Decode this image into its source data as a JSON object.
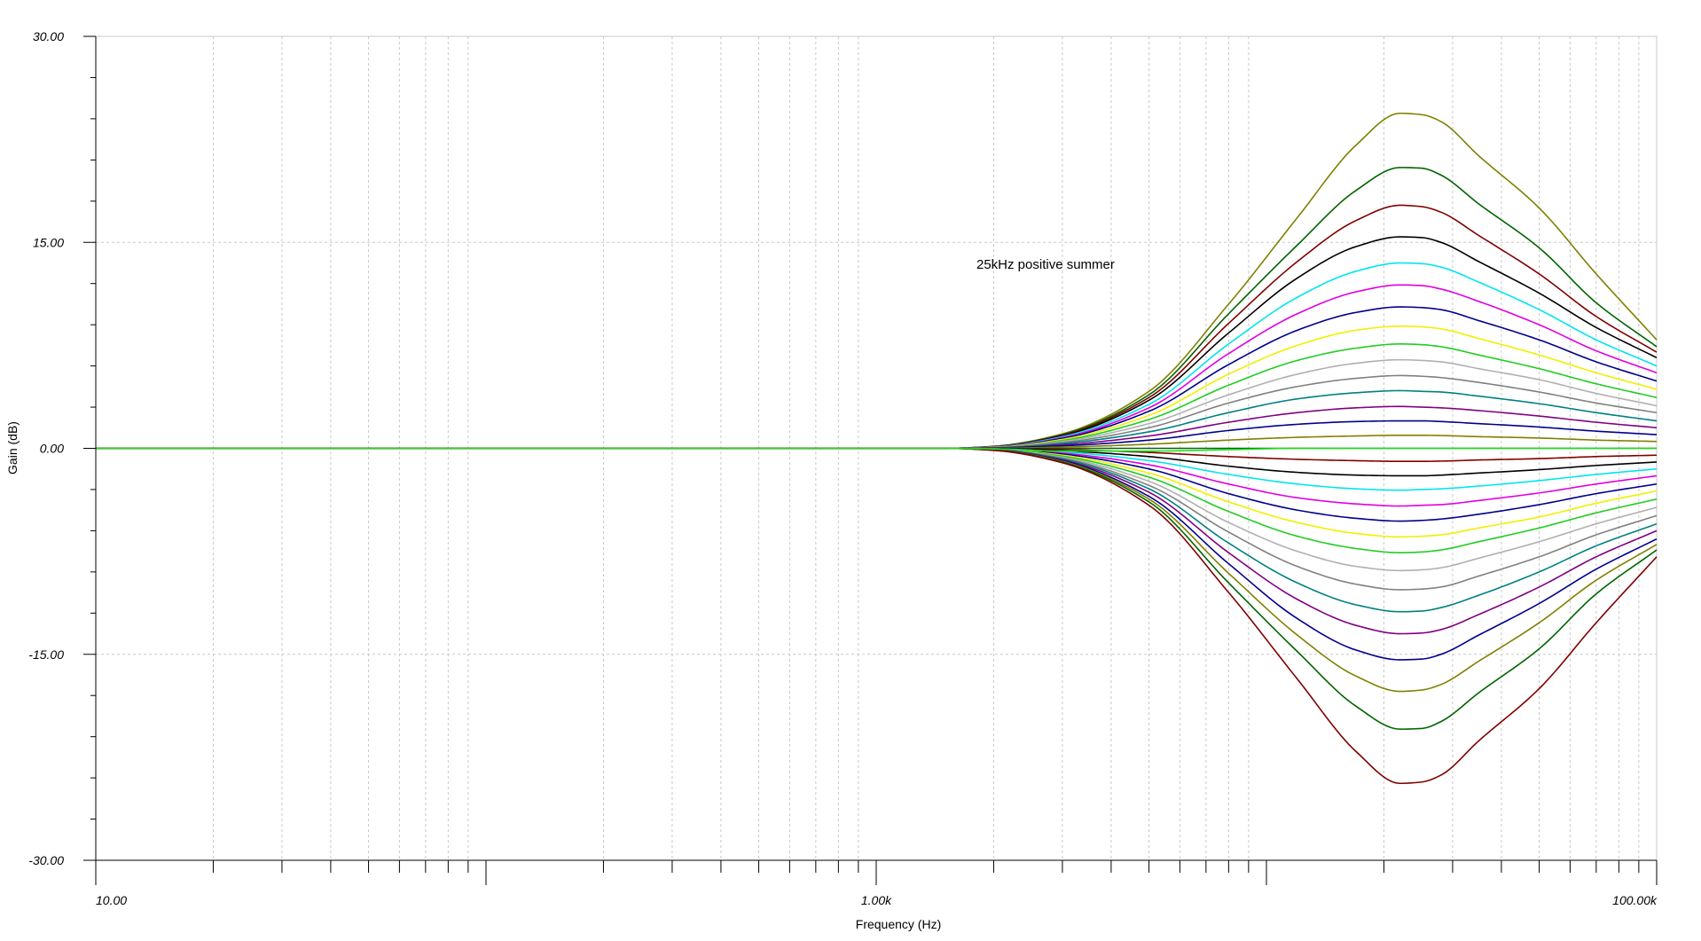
{
  "chart_data": {
    "type": "line",
    "title": "",
    "annotation": "25kHz positive summer",
    "xlabel": "Frequency (Hz)",
    "ylabel": "Gain (dB)",
    "x_scale": "log",
    "xlim": [
      10,
      100000
    ],
    "ylim": [
      -30,
      30
    ],
    "grid": true,
    "x_tick_labels": [
      {
        "value": 10,
        "label": "10.00"
      },
      {
        "value": 1000,
        "label": "1.00k"
      },
      {
        "value": 100000,
        "label": "100.00k"
      }
    ],
    "y_tick_labels": [
      {
        "value": 30,
        "label": "30.00"
      },
      {
        "value": 15,
        "label": "15.00"
      },
      {
        "value": 0,
        "label": "0.00"
      },
      {
        "value": -15,
        "label": "-15.00"
      },
      {
        "value": -30,
        "label": "-30.00"
      }
    ],
    "series_shape": {
      "flat_gain_db_below_hz": 1600,
      "center_frequency_hz": 25000,
      "curve_points_x_hz": [
        10,
        1500,
        2000,
        3000,
        5000,
        8000,
        12000,
        17000,
        22000,
        25000,
        28000,
        35000,
        50000,
        70000,
        100000
      ]
    },
    "series": [
      {
        "color": "#808000",
        "values": [
          0,
          0,
          0.15,
          1.05,
          4.15,
          10.5,
          16.8,
          22.1,
          24.4,
          24.3,
          23.8,
          21.3,
          17.5,
          12.7,
          7.9
        ]
      },
      {
        "color": "#006400",
        "values": [
          0,
          0,
          0.14,
          1.0,
          3.9,
          9.8,
          14.8,
          18.8,
          20.45,
          20.4,
          19.9,
          17.8,
          14.6,
          10.6,
          7.4
        ]
      },
      {
        "color": "#800000",
        "values": [
          0,
          0,
          0.13,
          0.95,
          3.7,
          9.1,
          13.6,
          16.6,
          17.7,
          17.6,
          17.2,
          15.5,
          12.7,
          9.6,
          7.0
        ]
      },
      {
        "color": "#000000",
        "values": [
          0,
          0,
          0.12,
          0.9,
          3.5,
          8.4,
          12.4,
          14.7,
          15.4,
          15.35,
          15.0,
          13.6,
          11.3,
          8.8,
          6.6
        ]
      },
      {
        "color": "#00e5ee",
        "values": [
          0,
          0,
          0.11,
          0.85,
          3.2,
          7.6,
          11.0,
          12.9,
          13.5,
          13.45,
          13.2,
          12.1,
          10.1,
          7.9,
          6.0
        ]
      },
      {
        "color": "#e000e0",
        "values": [
          0,
          0,
          0.1,
          0.78,
          2.95,
          6.9,
          9.8,
          11.4,
          11.9,
          11.85,
          11.6,
          10.7,
          9.0,
          7.1,
          5.5
        ]
      },
      {
        "color": "#00008b",
        "values": [
          0,
          0,
          0.09,
          0.72,
          2.7,
          6.1,
          8.6,
          9.9,
          10.3,
          10.25,
          10.1,
          9.3,
          7.9,
          6.3,
          4.9
        ]
      },
      {
        "color": "#f0f000",
        "values": [
          0,
          0,
          0.08,
          0.65,
          2.4,
          5.4,
          7.5,
          8.6,
          8.9,
          8.85,
          8.7,
          8.0,
          6.8,
          5.5,
          4.3
        ]
      },
      {
        "color": "#22cc22",
        "values": [
          0,
          0,
          0.07,
          0.57,
          2.1,
          4.6,
          6.4,
          7.3,
          7.6,
          7.55,
          7.4,
          6.8,
          5.8,
          4.7,
          3.7
        ]
      },
      {
        "color": "#b0b0b0",
        "values": [
          0,
          0,
          0.06,
          0.5,
          1.8,
          3.9,
          5.4,
          6.2,
          6.45,
          6.4,
          6.3,
          5.8,
          5.0,
          4.0,
          3.1
        ]
      },
      {
        "color": "#808080",
        "values": [
          0,
          0,
          0.05,
          0.42,
          1.5,
          3.3,
          4.5,
          5.1,
          5.3,
          5.25,
          5.15,
          4.8,
          4.1,
          3.3,
          2.6
        ]
      },
      {
        "color": "#008080",
        "values": [
          0,
          0,
          0.04,
          0.35,
          1.2,
          2.6,
          3.6,
          4.05,
          4.2,
          4.15,
          4.1,
          3.8,
          3.25,
          2.6,
          2.0
        ]
      },
      {
        "color": "#800080",
        "values": [
          0,
          0,
          0.03,
          0.26,
          0.9,
          1.9,
          2.6,
          2.95,
          3.05,
          3.0,
          2.95,
          2.75,
          2.35,
          1.9,
          1.5
        ]
      },
      {
        "color": "#00008b",
        "values": [
          0,
          0,
          0.02,
          0.18,
          0.6,
          1.3,
          1.75,
          1.95,
          2.0,
          2.0,
          1.95,
          1.8,
          1.55,
          1.25,
          1.0
        ]
      },
      {
        "color": "#808000",
        "values": [
          0,
          0,
          0.01,
          0.09,
          0.3,
          0.6,
          0.8,
          0.9,
          0.95,
          0.95,
          0.93,
          0.85,
          0.75,
          0.6,
          0.5
        ]
      },
      {
        "color": "#006400",
        "values": [
          0,
          0,
          0,
          0,
          0,
          0,
          0,
          0,
          0,
          0,
          0,
          0,
          0,
          0,
          0
        ]
      },
      {
        "color": "#800000",
        "values": [
          0,
          0,
          -0.01,
          -0.09,
          -0.3,
          -0.6,
          -0.8,
          -0.9,
          -0.95,
          -0.95,
          -0.93,
          -0.85,
          -0.75,
          -0.6,
          -0.5
        ]
      },
      {
        "color": "#000000",
        "values": [
          0,
          0,
          -0.02,
          -0.18,
          -0.6,
          -1.3,
          -1.75,
          -1.95,
          -2.0,
          -2.0,
          -1.95,
          -1.8,
          -1.55,
          -1.25,
          -1.0
        ]
      },
      {
        "color": "#00e5ee",
        "values": [
          0,
          0,
          -0.03,
          -0.26,
          -0.9,
          -1.9,
          -2.6,
          -2.95,
          -3.05,
          -3.0,
          -2.95,
          -2.75,
          -2.35,
          -1.9,
          -1.5
        ]
      },
      {
        "color": "#e000e0",
        "values": [
          0,
          0,
          -0.04,
          -0.35,
          -1.2,
          -2.6,
          -3.6,
          -4.05,
          -4.2,
          -4.15,
          -4.1,
          -3.8,
          -3.25,
          -2.6,
          -2.0
        ]
      },
      {
        "color": "#00008b",
        "values": [
          0,
          0,
          -0.05,
          -0.42,
          -1.5,
          -3.3,
          -4.5,
          -5.1,
          -5.3,
          -5.25,
          -5.15,
          -4.8,
          -4.1,
          -3.3,
          -2.6
        ]
      },
      {
        "color": "#f0f000",
        "values": [
          0,
          0,
          -0.06,
          -0.5,
          -1.8,
          -3.9,
          -5.4,
          -6.2,
          -6.45,
          -6.4,
          -6.3,
          -5.8,
          -5.0,
          -4.0,
          -3.1
        ]
      },
      {
        "color": "#22cc22",
        "values": [
          0,
          0,
          -0.07,
          -0.57,
          -2.1,
          -4.6,
          -6.4,
          -7.3,
          -7.6,
          -7.55,
          -7.4,
          -6.8,
          -5.8,
          -4.7,
          -3.7
        ]
      },
      {
        "color": "#b0b0b0",
        "values": [
          0,
          0,
          -0.08,
          -0.65,
          -2.4,
          -5.4,
          -7.5,
          -8.6,
          -8.9,
          -8.85,
          -8.7,
          -8.0,
          -6.8,
          -5.5,
          -4.3
        ]
      },
      {
        "color": "#808080",
        "values": [
          0,
          0,
          -0.09,
          -0.72,
          -2.7,
          -6.1,
          -8.6,
          -9.9,
          -10.3,
          -10.25,
          -10.1,
          -9.3,
          -7.9,
          -6.3,
          -4.9
        ]
      },
      {
        "color": "#008080",
        "values": [
          0,
          0,
          -0.1,
          -0.78,
          -2.95,
          -6.9,
          -9.8,
          -11.4,
          -11.9,
          -11.85,
          -11.6,
          -10.7,
          -9.0,
          -7.1,
          -5.5
        ]
      },
      {
        "color": "#800080",
        "values": [
          0,
          0,
          -0.11,
          -0.85,
          -3.2,
          -7.6,
          -11.0,
          -12.9,
          -13.5,
          -13.45,
          -13.2,
          -12.1,
          -10.1,
          -7.9,
          -6.0
        ]
      },
      {
        "color": "#00008b",
        "values": [
          0,
          0,
          -0.12,
          -0.9,
          -3.5,
          -8.4,
          -12.4,
          -14.7,
          -15.4,
          -15.35,
          -15.0,
          -13.6,
          -11.3,
          -8.8,
          -6.6
        ]
      },
      {
        "color": "#808000",
        "values": [
          0,
          0,
          -0.13,
          -0.95,
          -3.7,
          -9.1,
          -13.6,
          -16.6,
          -17.7,
          -17.6,
          -17.2,
          -15.5,
          -12.7,
          -9.6,
          -7.0
        ]
      },
      {
        "color": "#006400",
        "values": [
          0,
          0,
          -0.14,
          -1.0,
          -3.9,
          -9.8,
          -14.8,
          -18.8,
          -20.45,
          -20.4,
          -19.9,
          -17.8,
          -14.6,
          -10.6,
          -7.4
        ]
      },
      {
        "color": "#800000",
        "values": [
          0,
          0,
          -0.15,
          -1.05,
          -4.15,
          -10.5,
          -16.8,
          -22.1,
          -24.4,
          -24.3,
          -23.8,
          -21.3,
          -17.5,
          -12.7,
          -7.9
        ]
      },
      {
        "color": "#22dd22",
        "values": [
          0,
          0,
          -0.05,
          -0.2,
          -0.2,
          -0.1,
          0,
          0,
          0,
          0,
          0,
          0,
          0,
          0,
          0
        ]
      }
    ]
  }
}
